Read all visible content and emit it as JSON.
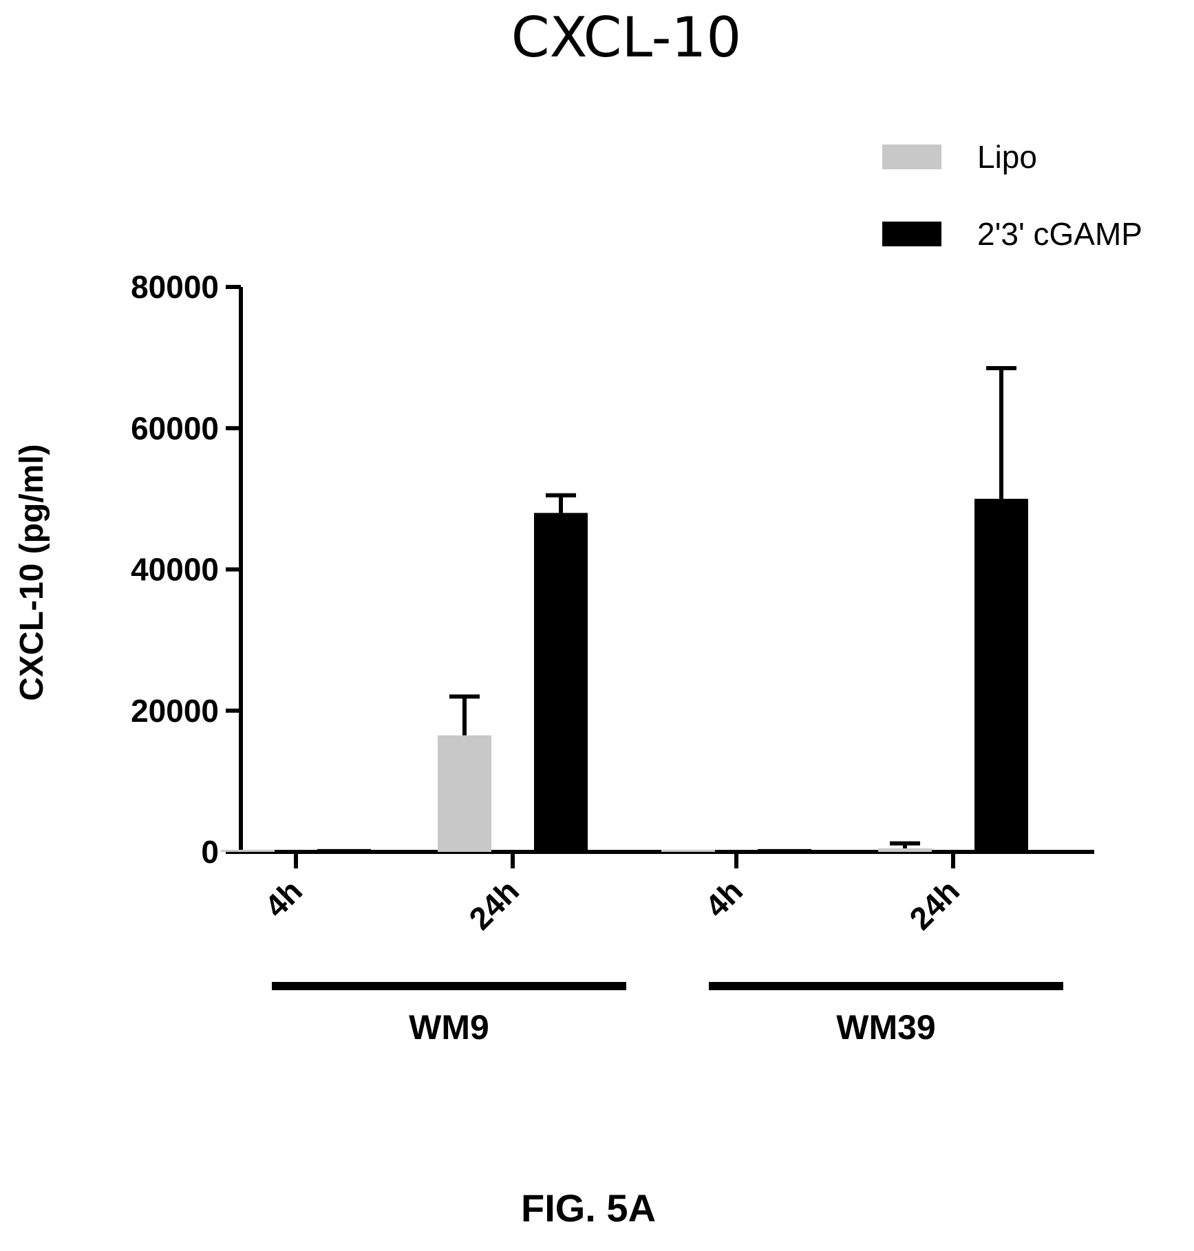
{
  "chart_data": {
    "type": "bar",
    "title": "CXCL-10",
    "ylabel": "CXCL-10 (pg/ml)",
    "xlabel": "",
    "ylim": [
      0,
      80000
    ],
    "yticks": [
      0,
      20000,
      40000,
      60000,
      80000
    ],
    "ytick_labels": [
      "0",
      "20000",
      "40000",
      "60000",
      "80000"
    ],
    "categories": [
      "4h",
      "24h",
      "4h",
      "24h"
    ],
    "groups": [
      {
        "label": "WM9",
        "categories": [
          0,
          1
        ]
      },
      {
        "label": "WM39",
        "categories": [
          2,
          3
        ]
      }
    ],
    "series": [
      {
        "name": "Lipo",
        "color": "#c8c8c8",
        "values": [
          300,
          16500,
          300,
          500
        ],
        "errors": [
          0,
          5500,
          0,
          700
        ]
      },
      {
        "name": "2'3' cGAMP",
        "color": "#000000",
        "values": [
          400,
          48000,
          400,
          50000
        ],
        "errors": [
          0,
          2500,
          0,
          18500
        ]
      }
    ],
    "legend": "top-right",
    "grid": false
  },
  "figure_label": "FIG. 5A"
}
